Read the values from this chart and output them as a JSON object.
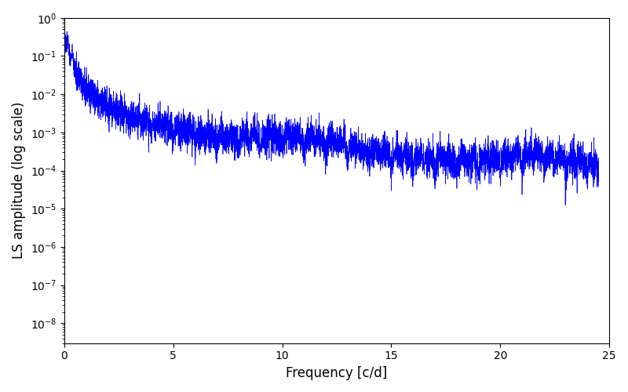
{
  "xlabel": "Frequency [c/d]",
  "ylabel": "LS amplitude (log scale)",
  "line_color": "#0000ff",
  "line_width": 0.5,
  "xlim": [
    0,
    25
  ],
  "ylim": [
    3e-09,
    1.0
  ],
  "yscale": "log",
  "figsize": [
    8.0,
    5.0
  ],
  "dpi": 100,
  "freq_max": 24.5,
  "n_points": 6000,
  "seed": 42,
  "background_color": "#ffffff"
}
